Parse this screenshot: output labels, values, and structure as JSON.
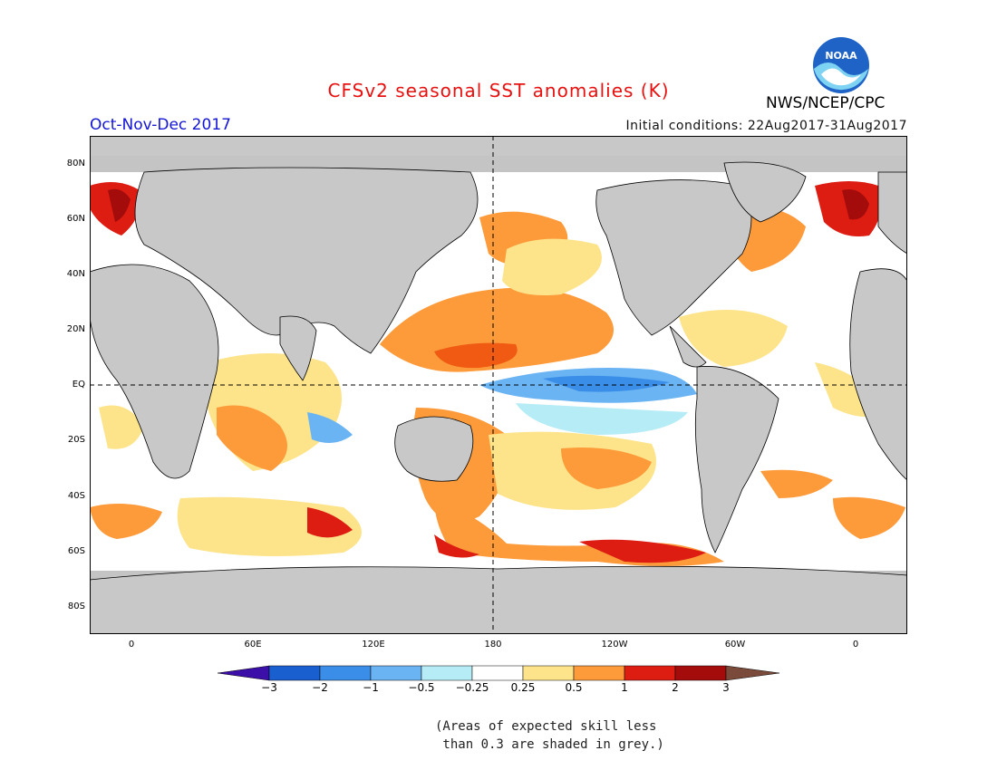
{
  "header": {
    "title": "CFSv2 seasonal SST anomalies (K)",
    "season": "Oct-Nov-Dec 2017",
    "initial_conditions": "Initial conditions: 22Aug2017-31Aug2017",
    "agency": "NWS/NCEP/CPC",
    "logo_text": "NOAA"
  },
  "map": {
    "lat_ticks": [
      "80N",
      "60N",
      "40N",
      "20N",
      "EQ",
      "20S",
      "40S",
      "60S",
      "80S"
    ],
    "lon_ticks": [
      "0",
      "60E",
      "120E",
      "180",
      "120W",
      "60W",
      "0"
    ],
    "land_color": "#c8c8c8",
    "grey_skill_color": "#c0c0c0"
  },
  "colorbar": {
    "labels": [
      "−3",
      "−2",
      "−1",
      "−0.5",
      "−0.25",
      "0.25",
      "0.5",
      "1",
      "2",
      "3"
    ],
    "colors": [
      "#3b0fa8",
      "#1a5fd0",
      "#3a8ee8",
      "#6ab4f4",
      "#b6ecf6",
      "#ffffff",
      "#fde48a",
      "#fd9a3a",
      "#f05a12",
      "#dd1c12",
      "#a40c0c",
      "#7a4a3a"
    ]
  },
  "note": {
    "line1": "(Areas of expected skill less",
    "line2": " than 0.3 are shaded in grey.)"
  }
}
